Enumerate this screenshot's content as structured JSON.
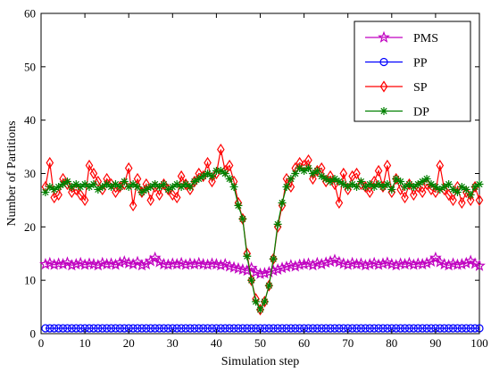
{
  "chart_data": {
    "type": "line",
    "xlabel": "Simulation step",
    "ylabel": "Number of Partitions",
    "xlim": [
      0,
      100
    ],
    "ylim": [
      0,
      60
    ],
    "x_ticks": [
      0,
      10,
      20,
      30,
      40,
      50,
      60,
      70,
      80,
      90,
      100
    ],
    "y_ticks": [
      0,
      10,
      20,
      30,
      40,
      50,
      60
    ],
    "grid": false,
    "legend_position": "top-right",
    "x": [
      1,
      2,
      3,
      4,
      5,
      6,
      7,
      8,
      9,
      10,
      11,
      12,
      13,
      14,
      15,
      16,
      17,
      18,
      19,
      20,
      21,
      22,
      23,
      24,
      25,
      26,
      27,
      28,
      29,
      30,
      31,
      32,
      33,
      34,
      35,
      36,
      37,
      38,
      39,
      40,
      41,
      42,
      43,
      44,
      45,
      46,
      47,
      48,
      49,
      50,
      51,
      52,
      53,
      54,
      55,
      56,
      57,
      58,
      59,
      60,
      61,
      62,
      63,
      64,
      65,
      66,
      67,
      68,
      69,
      70,
      71,
      72,
      73,
      74,
      75,
      76,
      77,
      78,
      79,
      80,
      81,
      82,
      83,
      84,
      85,
      86,
      87,
      88,
      89,
      90,
      91,
      92,
      93,
      94,
      95,
      96,
      97,
      98,
      99,
      100
    ],
    "series": [
      {
        "name": "PMS",
        "color": "#c000c0",
        "marker": "star",
        "values": [
          13.0,
          13.2,
          12.9,
          13.1,
          13.0,
          13.3,
          12.8,
          13.0,
          13.2,
          12.9,
          13.1,
          13.0,
          12.8,
          13.2,
          13.0,
          13.1,
          12.9,
          13.3,
          13.5,
          13.2,
          13.0,
          13.4,
          12.8,
          13.0,
          13.6,
          14.2,
          13.4,
          13.0,
          12.9,
          13.1,
          13.0,
          13.2,
          12.9,
          13.1,
          13.0,
          13.2,
          13.0,
          12.9,
          13.1,
          13.0,
          12.8,
          13.0,
          12.6,
          12.4,
          12.2,
          12.0,
          11.8,
          12.3,
          11.5,
          11.2,
          11.3,
          11.5,
          11.8,
          12.0,
          12.3,
          12.5,
          12.8,
          12.6,
          12.9,
          13.0,
          13.1,
          12.8,
          13.2,
          13.0,
          13.3,
          13.5,
          13.8,
          13.4,
          13.1,
          12.9,
          13.2,
          13.0,
          13.1,
          12.8,
          13.0,
          13.2,
          12.9,
          13.1,
          13.3,
          13.0,
          12.8,
          13.1,
          13.0,
          13.2,
          12.9,
          13.1,
          13.0,
          13.2,
          13.5,
          14.2,
          13.4,
          13.0,
          12.8,
          13.1,
          12.9,
          13.0,
          13.2,
          13.6,
          13.1,
          12.7
        ]
      },
      {
        "name": "PP",
        "color": "#0000ff",
        "marker": "circle",
        "values": [
          1,
          1,
          1,
          1,
          1,
          1,
          1,
          1,
          1,
          1,
          1,
          1,
          1,
          1,
          1,
          1,
          1,
          1,
          1,
          1,
          1,
          1,
          1,
          1,
          1,
          1,
          1,
          1,
          1,
          1,
          1,
          1,
          1,
          1,
          1,
          1,
          1,
          1,
          1,
          1,
          1,
          1,
          1,
          1,
          1,
          1,
          1,
          1,
          1,
          1,
          1,
          1,
          1,
          1,
          1,
          1,
          1,
          1,
          1,
          1,
          1,
          1,
          1,
          1,
          1,
          1,
          1,
          1,
          1,
          1,
          1,
          1,
          1,
          1,
          1,
          1,
          1,
          1,
          1,
          1,
          1,
          1,
          1,
          1,
          1,
          1,
          1,
          1,
          1,
          1,
          1,
          1,
          1,
          1,
          1,
          1,
          1,
          1,
          1,
          1
        ]
      },
      {
        "name": "SP",
        "color": "#ff0000",
        "marker": "diamond",
        "values": [
          27.5,
          32.0,
          25.5,
          26.0,
          29.0,
          28.0,
          26.5,
          27.0,
          26.0,
          25.0,
          31.5,
          30.0,
          28.5,
          27.0,
          29.0,
          28.0,
          26.5,
          27.5,
          28.0,
          31.0,
          24.0,
          29.0,
          26.5,
          28.0,
          25.0,
          27.5,
          26.0,
          28.0,
          27.0,
          26.0,
          25.5,
          29.5,
          28.0,
          27.0,
          28.5,
          30.0,
          29.5,
          32.0,
          28.5,
          30.0,
          34.5,
          30.5,
          31.5,
          28.5,
          24.5,
          21.5,
          15.0,
          10.0,
          6.5,
          4.5,
          6.0,
          9.0,
          14.0,
          20.0,
          24.0,
          29.0,
          27.5,
          31.0,
          32.0,
          31.5,
          32.5,
          29.0,
          30.5,
          31.0,
          28.5,
          29.5,
          28.0,
          24.5,
          30.0,
          27.0,
          29.5,
          30.0,
          28.0,
          27.5,
          26.5,
          28.5,
          30.5,
          27.5,
          31.5,
          26.5,
          29.0,
          27.0,
          25.5,
          28.0,
          26.0,
          27.5,
          26.5,
          28.0,
          27.0,
          26.5,
          31.5,
          27.0,
          26.0,
          25.0,
          27.5,
          24.5,
          26.5,
          25.0,
          27.5,
          25.0
        ]
      },
      {
        "name": "DP",
        "color": "#008000",
        "marker": "asterisk",
        "values": [
          26.5,
          27.5,
          27.0,
          27.5,
          28.0,
          28.5,
          27.5,
          28.0,
          27.5,
          28.0,
          27.5,
          28.0,
          27.0,
          27.5,
          28.0,
          27.5,
          28.0,
          27.5,
          28.5,
          27.5,
          28.0,
          27.5,
          26.5,
          27.0,
          27.5,
          28.0,
          27.5,
          28.0,
          27.0,
          27.5,
          28.0,
          27.5,
          28.0,
          27.5,
          28.5,
          29.0,
          29.5,
          30.0,
          29.5,
          30.5,
          30.5,
          30.0,
          29.0,
          27.5,
          24.0,
          21.5,
          14.5,
          10.0,
          6.0,
          4.5,
          6.0,
          9.0,
          14.0,
          20.5,
          24.5,
          27.5,
          29.0,
          30.0,
          31.0,
          30.5,
          31.0,
          30.0,
          30.5,
          29.5,
          29.0,
          28.5,
          29.0,
          28.5,
          28.0,
          27.5,
          28.0,
          27.5,
          28.5,
          27.5,
          28.0,
          27.5,
          28.0,
          27.5,
          28.0,
          27.0,
          29.0,
          28.5,
          27.5,
          28.0,
          27.5,
          28.0,
          28.5,
          29.0,
          28.0,
          27.5,
          27.0,
          27.5,
          28.0,
          27.0,
          26.5,
          27.5,
          27.0,
          26.0,
          27.5,
          28.0
        ]
      }
    ]
  }
}
